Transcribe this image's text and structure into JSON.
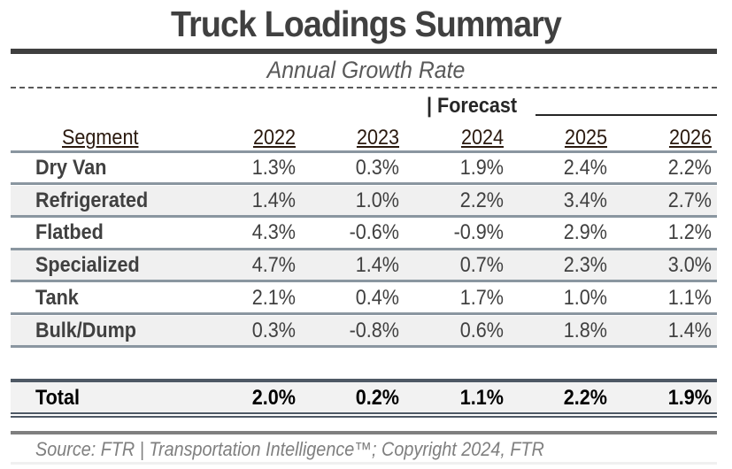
{
  "title": "Truck Loadings Summary",
  "subtitle": "Annual Growth Rate",
  "forecast_label": "| Forecast",
  "table": {
    "headers": [
      "Segment",
      "2022",
      "2023",
      "2024",
      "2025",
      "2026"
    ],
    "rows": [
      {
        "segment": "Dry Van",
        "values": [
          "1.3%",
          "0.3%",
          "1.9%",
          "2.4%",
          "2.2%"
        ]
      },
      {
        "segment": "Refrigerated",
        "values": [
          "1.4%",
          "1.0%",
          "2.2%",
          "3.4%",
          "2.7%"
        ]
      },
      {
        "segment": "Flatbed",
        "values": [
          "4.3%",
          "-0.6%",
          "-0.9%",
          "2.9%",
          "1.2%"
        ]
      },
      {
        "segment": "Specialized",
        "values": [
          "4.7%",
          "1.4%",
          "0.7%",
          "2.3%",
          "3.0%"
        ]
      },
      {
        "segment": "Tank",
        "values": [
          "2.1%",
          "0.4%",
          "1.7%",
          "1.0%",
          "1.1%"
        ]
      },
      {
        "segment": "Bulk/Dump",
        "values": [
          "0.3%",
          "-0.8%",
          "0.6%",
          "1.8%",
          "1.4%"
        ]
      }
    ],
    "total": {
      "segment": "Total",
      "values": [
        "2.0%",
        "0.2%",
        "1.1%",
        "2.2%",
        "1.9%"
      ]
    }
  },
  "source": "Source: FTR | Transportation Intelligence™; Copyright 2024, FTR"
}
